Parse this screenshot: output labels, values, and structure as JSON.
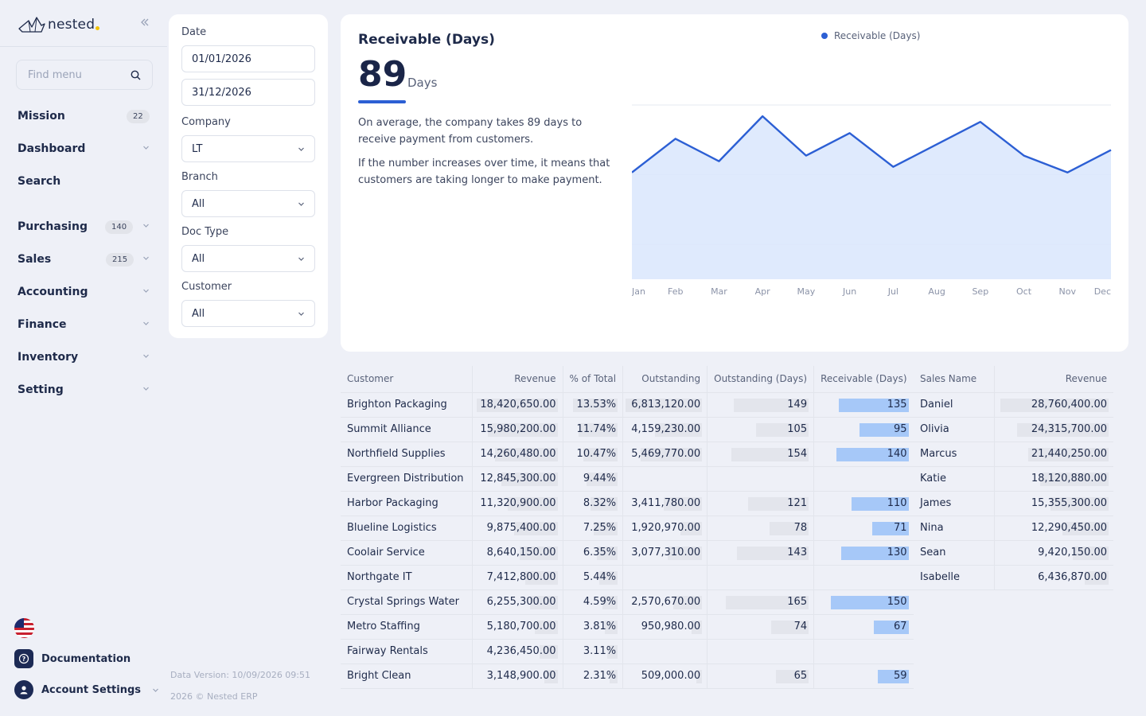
{
  "app": {
    "logo_text": "nested"
  },
  "sidebar": {
    "search_placeholder": "Find menu",
    "items": [
      {
        "label": "Mission",
        "badge": "22"
      },
      {
        "label": "Dashboard"
      },
      {
        "label": "Search"
      },
      {
        "label": "Purchasing",
        "badge": "140"
      },
      {
        "label": "Sales",
        "badge": "215"
      },
      {
        "label": "Accounting"
      },
      {
        "label": "Finance"
      },
      {
        "label": "Inventory"
      },
      {
        "label": "Setting"
      }
    ],
    "documentation": "Documentation",
    "account_settings": "Account Settings"
  },
  "filters": {
    "date_label": "Date",
    "date_from": "01/01/2026",
    "date_to": "31/12/2026",
    "company_label": "Company",
    "company": "LT",
    "branch_label": "Branch",
    "branch": "All",
    "doctype_label": "Doc Type",
    "doctype": "All",
    "customer_label": "Customer",
    "customer": "All"
  },
  "footer": {
    "data_version": "Data Version: 10/09/2026 09:51",
    "copyright": "2026 © Nested ERP"
  },
  "kpi": {
    "title": "Receivable (Days)",
    "value": "89",
    "unit": "Days",
    "desc1": "On average, the company takes 89 days to receive payment from customers.",
    "desc2": "If the number increases over time, it means that customers are taking longer to make payment.",
    "accent": "#2c5fd4"
  },
  "chart_data": {
    "type": "area",
    "categories": [
      "Jan",
      "Feb",
      "Mar",
      "Apr",
      "May",
      "Jun",
      "Jul",
      "Aug",
      "Sep",
      "Oct",
      "Nov",
      "Dec"
    ],
    "series": [
      {
        "name": "Receivable (Days)",
        "values": [
          84,
          90,
          86,
          94,
          87,
          91,
          85,
          89,
          93,
          87,
          84,
          88
        ]
      }
    ],
    "ylim": [
      65,
      96
    ],
    "grid": true,
    "legend": "top"
  },
  "customer_table": {
    "headers": [
      "Customer",
      "Revenue",
      "% of Total",
      "Outstanding",
      "Outstanding (Days)",
      "Receivable (Days)"
    ],
    "rows": [
      {
        "customer": "Brighton Packaging",
        "revenue": "18,420,650.00",
        "pct": "13.53%",
        "outstanding": "6,813,120.00",
        "out_days": "149",
        "rec_days": "135"
      },
      {
        "customer": "Summit Alliance",
        "revenue": "15,980,200.00",
        "pct": "11.74%",
        "outstanding": "4,159,230.00",
        "out_days": "105",
        "rec_days": "95"
      },
      {
        "customer": "Northfield Supplies",
        "revenue": "14,260,480.00",
        "pct": "10.47%",
        "outstanding": "5,469,770.00",
        "out_days": "154",
        "rec_days": "140"
      },
      {
        "customer": "Evergreen Distribution",
        "revenue": "12,845,300.00",
        "pct": "9.44%",
        "outstanding": "",
        "out_days": "",
        "rec_days": ""
      },
      {
        "customer": "Harbor Packaging",
        "revenue": "11,320,900.00",
        "pct": "8.32%",
        "outstanding": "3,411,780.00",
        "out_days": "121",
        "rec_days": "110"
      },
      {
        "customer": "Blueline Logistics",
        "revenue": "9,875,400.00",
        "pct": "7.25%",
        "outstanding": "1,920,970.00",
        "out_days": "78",
        "rec_days": "71"
      },
      {
        "customer": "Coolair Service",
        "revenue": "8,640,150.00",
        "pct": "6.35%",
        "outstanding": "3,077,310.00",
        "out_days": "143",
        "rec_days": "130"
      },
      {
        "customer": "Northgate IT",
        "revenue": "7,412,800.00",
        "pct": "5.44%",
        "outstanding": "",
        "out_days": "",
        "rec_days": ""
      },
      {
        "customer": "Crystal Springs Water",
        "revenue": "6,255,300.00",
        "pct": "4.59%",
        "outstanding": "2,570,670.00",
        "out_days": "165",
        "rec_days": "150"
      },
      {
        "customer": "Metro Staffing",
        "revenue": "5,180,700.00",
        "pct": "3.81%",
        "outstanding": "950,980.00",
        "out_days": "74",
        "rec_days": "67"
      },
      {
        "customer": "Fairway Rentals",
        "revenue": "4,236,450.00",
        "pct": "3.11%",
        "outstanding": "",
        "out_days": "",
        "rec_days": ""
      },
      {
        "customer": "Bright Clean",
        "revenue": "3,148,900.00",
        "pct": "2.31%",
        "outstanding": "509,000.00",
        "out_days": "65",
        "rec_days": "59"
      }
    ]
  },
  "sales_table": {
    "headers": [
      "Sales Name",
      "Revenue"
    ],
    "rows": [
      {
        "name": "Daniel",
        "revenue": "28,760,400.00"
      },
      {
        "name": "Olivia",
        "revenue": "24,315,700.00"
      },
      {
        "name": "Marcus",
        "revenue": "21,440,250.00"
      },
      {
        "name": "Katie",
        "revenue": "18,120,880.00"
      },
      {
        "name": "James",
        "revenue": "15,355,300.00"
      },
      {
        "name": "Nina",
        "revenue": "12,290,450.00"
      },
      {
        "name": "Sean",
        "revenue": "9,420,150.00"
      },
      {
        "name": "Isabelle",
        "revenue": "6,436,870.00"
      }
    ]
  }
}
